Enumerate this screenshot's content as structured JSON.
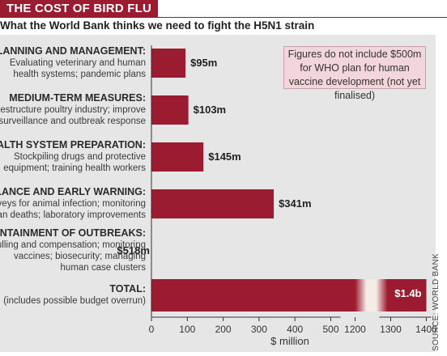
{
  "header": {
    "title": "THE COST OF BIRD FLU",
    "subtitle": "What the World Bank thinks we need to fight the H5N1 strain"
  },
  "note": "Figures do not include $500m for WHO plan for human vaccine development (not yet finalised)",
  "source": "SOURCE: WORLD BANK",
  "colors": {
    "bar": "#9b1b30",
    "panel": "#e6e6e6",
    "note_bg": "#f2d6dc"
  },
  "chart_data": {
    "type": "bar",
    "orientation": "horizontal",
    "title": "THE COST OF BIRD FLU",
    "subtitle": "What the World Bank thinks we need to fight the H5N1 strain",
    "xlabel": "$ million",
    "axis_break": [
      500,
      1200
    ],
    "xticks": [
      "0",
      "100",
      "200",
      "300",
      "400",
      "500",
      "1200",
      "1300",
      "1400"
    ],
    "categories": [
      {
        "name": "PLANNING AND MANAGEMENT:",
        "desc": [
          "Evaluating veterinary and human",
          "health systems; pandemic plans"
        ]
      },
      {
        "name": "MEDIUM-TERM MEASURES:",
        "desc": [
          "Restructure poultry industry; improve",
          "surveillance and outbreak response"
        ]
      },
      {
        "name": "HEALTH SYSTEM PREPARATION:",
        "desc": [
          "Stockpiling drugs and protective",
          "equipment; training health workers"
        ]
      },
      {
        "name": "SURVEILLANCE AND EARLY WARNING:",
        "desc": [
          "Surveys for animal infection; monitoring",
          "human deaths; laboratory improvements"
        ]
      },
      {
        "name": "CONTAINMENT OF OUTBREAKS:",
        "desc": [
          "Culling and compensation; monitoring",
          "vaccines; biosecurity; managing",
          "human case clusters"
        ]
      },
      {
        "name": "TOTAL:",
        "desc": [
          "(includes possible budget overrun)"
        ]
      }
    ],
    "values": [
      95,
      103,
      145,
      341,
      518,
      1400
    ],
    "value_labels": [
      "$95m",
      "$103m",
      "$145m",
      "$341m",
      "$518m",
      "$1.4b"
    ],
    "grid": false
  }
}
